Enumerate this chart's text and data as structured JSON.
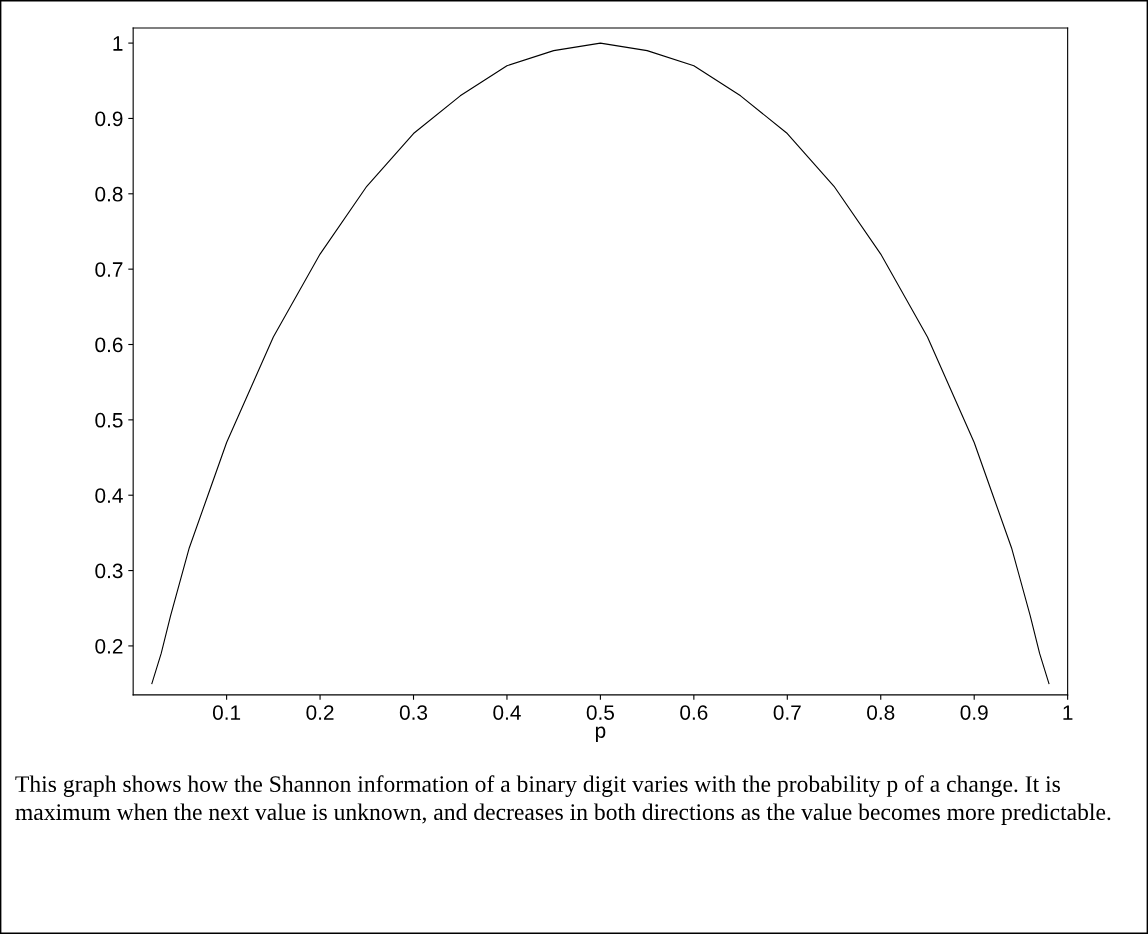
{
  "chart_data": {
    "type": "line",
    "xlabel": "p",
    "x": [
      0.02,
      0.03,
      0.04,
      0.06,
      0.08,
      0.1,
      0.125,
      0.15,
      0.2,
      0.25,
      0.3,
      0.35,
      0.4,
      0.45,
      0.5,
      0.55,
      0.6,
      0.65,
      0.7,
      0.75,
      0.8,
      0.85,
      0.875,
      0.9,
      0.92,
      0.94,
      0.96,
      0.97,
      0.98
    ],
    "series": [
      {
        "color": "#000000",
        "values": [
          0.15,
          0.19,
          0.24,
          0.33,
          0.4,
          0.47,
          0.54,
          0.61,
          0.72,
          0.81,
          0.88,
          0.93,
          0.97,
          0.99,
          1.0,
          0.99,
          0.97,
          0.93,
          0.88,
          0.81,
          0.72,
          0.61,
          0.54,
          0.47,
          0.4,
          0.33,
          0.24,
          0.19,
          0.15
        ]
      }
    ],
    "xlim": [
      0.0,
      1.0
    ],
    "xticks": [
      0.1,
      0.2,
      0.3,
      0.4,
      0.5,
      0.6,
      0.7,
      0.8,
      0.9,
      1
    ],
    "ylim": [
      0.135,
      1.02
    ],
    "yticks": [
      0.2,
      0.3,
      0.4,
      0.5,
      0.6,
      0.7,
      0.8,
      0.9,
      1
    ],
    "grid": false,
    "legend": false,
    "marker": "none",
    "line_style": "solid",
    "annotations": [
      "This graph shows how the Shannon information of a binary digit varies with the probability p of a change. It is maximum when the next value is unknown, and decreases in both directions as the value becomes more predictable."
    ]
  }
}
